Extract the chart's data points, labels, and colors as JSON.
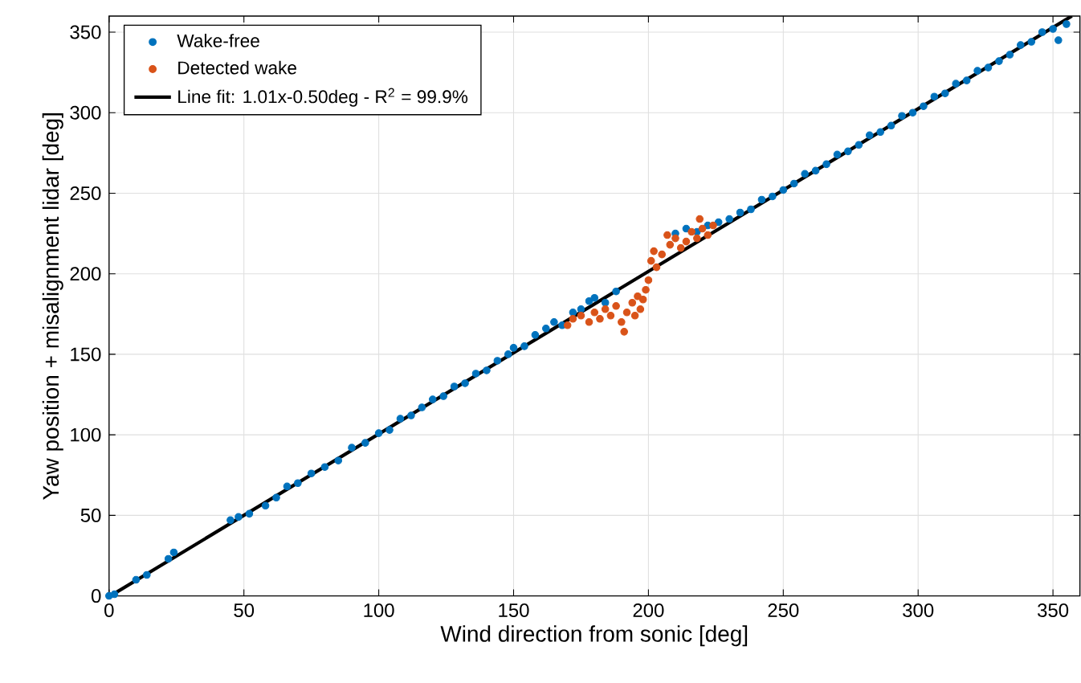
{
  "chart_data": {
    "type": "scatter",
    "xlabel": "Wind direction from sonic [deg]",
    "ylabel": "Yaw position + misalignment lidar [deg]",
    "xlim": [
      0,
      360
    ],
    "ylim": [
      0,
      360
    ],
    "xticks": [
      0,
      50,
      100,
      150,
      200,
      250,
      300,
      350
    ],
    "yticks": [
      0,
      50,
      100,
      150,
      200,
      250,
      300,
      350
    ],
    "grid": true,
    "legend": "top left",
    "marker": "circle",
    "series": [
      {
        "name": "Wake-free",
        "color": "#0072bd",
        "x": [
          0,
          2,
          10,
          14,
          22,
          24,
          45,
          48,
          52,
          58,
          62,
          66,
          70,
          75,
          80,
          85,
          90,
          95,
          100,
          104,
          108,
          112,
          116,
          120,
          124,
          128,
          132,
          136,
          140,
          144,
          148,
          150,
          154,
          158,
          162,
          165,
          168,
          172,
          175,
          178,
          180,
          184,
          188,
          210,
          214,
          218,
          222,
          226,
          230,
          234,
          238,
          242,
          246,
          250,
          254,
          258,
          262,
          266,
          270,
          274,
          278,
          282,
          286,
          290,
          294,
          298,
          302,
          306,
          310,
          314,
          318,
          322,
          326,
          330,
          334,
          338,
          342,
          346,
          350,
          352,
          355
        ],
        "values": [
          0,
          1,
          10,
          13,
          23,
          27,
          47,
          49,
          51,
          56,
          61,
          68,
          70,
          76,
          80,
          84,
          92,
          95,
          101,
          103,
          110,
          112,
          117,
          122,
          124,
          130,
          132,
          138,
          140,
          146,
          150,
          154,
          155,
          162,
          166,
          170,
          168,
          176,
          178,
          183,
          185,
          182,
          189,
          225,
          228,
          226,
          230,
          232,
          234,
          238,
          240,
          246,
          248,
          252,
          256,
          262,
          264,
          268,
          274,
          276,
          280,
          286,
          288,
          292,
          298,
          300,
          304,
          310,
          312,
          318,
          320,
          326,
          328,
          332,
          336,
          342,
          344,
          350,
          352,
          345,
          355
        ]
      },
      {
        "name": "Detected wake",
        "color": "#d95319",
        "x": [
          170,
          172,
          175,
          178,
          180,
          182,
          184,
          186,
          188,
          190,
          191,
          192,
          194,
          195,
          196,
          197,
          198,
          199,
          200,
          201,
          202,
          203,
          205,
          207,
          208,
          210,
          212,
          214,
          216,
          218,
          219,
          220,
          222,
          224
        ],
        "values": [
          168,
          172,
          174,
          170,
          176,
          172,
          178,
          174,
          180,
          170,
          164,
          176,
          182,
          174,
          186,
          178,
          184,
          190,
          196,
          208,
          214,
          204,
          212,
          224,
          218,
          222,
          216,
          220,
          226,
          222,
          234,
          228,
          224,
          230
        ]
      },
      {
        "name": "Line fit: 1.01x-0.50deg - R$^{2}$ = 99.9%",
        "type": "line",
        "color": "#000000",
        "marker": "none",
        "x": [
          0.5,
          357
        ],
        "values": [
          0,
          360
        ]
      }
    ]
  }
}
